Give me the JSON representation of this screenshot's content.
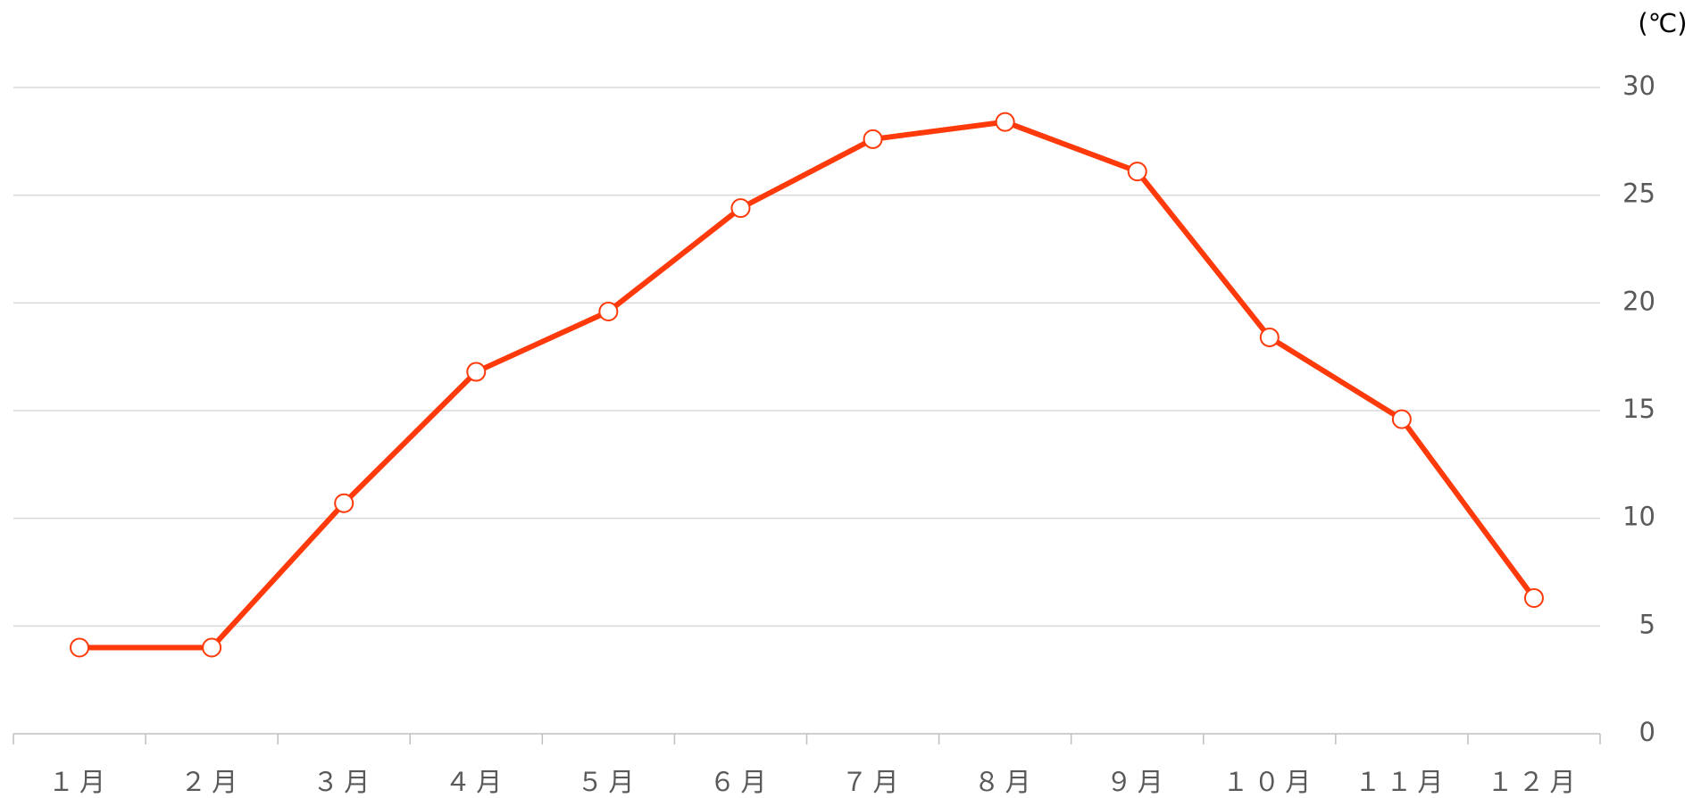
{
  "chart_data": {
    "type": "line",
    "y_unit_label": "(℃)",
    "categories": [
      "１月",
      "２月",
      "３月",
      "４月",
      "５月",
      "６月",
      "７月",
      "８月",
      "９月",
      "１０月",
      "１１月",
      "１２月"
    ],
    "series": [
      {
        "color": "#ff3a0a",
        "values": [
          4.0,
          4.0,
          10.7,
          16.8,
          19.6,
          24.4,
          27.6,
          28.4,
          26.1,
          18.4,
          14.6,
          6.3
        ]
      }
    ],
    "ylim": [
      0,
      30
    ],
    "yticks": [
      0,
      5,
      10,
      15,
      20,
      25,
      30
    ],
    "grid": true,
    "y_axis_side": "right"
  }
}
